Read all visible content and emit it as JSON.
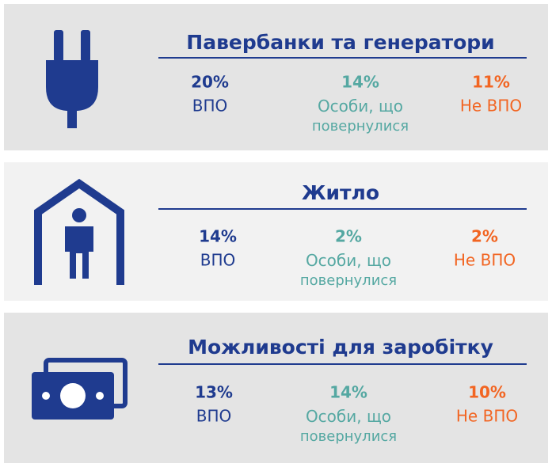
{
  "sections": [
    {
      "title": "Павербанки та генератори",
      "stats": [
        {
          "value": "20%",
          "label": "ВПО"
        },
        {
          "value": "14%",
          "label": "Особи, що повернулися"
        },
        {
          "value": "11%",
          "label": "Не ВПО"
        }
      ]
    },
    {
      "title": "Житло",
      "stats": [
        {
          "value": "14%",
          "label": "ВПО"
        },
        {
          "value": "2%",
          "label": "Особи, що повернулися"
        },
        {
          "value": "2%",
          "label": "Не ВПО"
        }
      ]
    },
    {
      "title": "Можливості для заробітку",
      "stats": [
        {
          "value": "13%",
          "label": "ВПО"
        },
        {
          "value": "14%",
          "label": "Особи, що повернулися"
        },
        {
          "value": "10%",
          "label": "Не ВПО"
        }
      ]
    }
  ]
}
